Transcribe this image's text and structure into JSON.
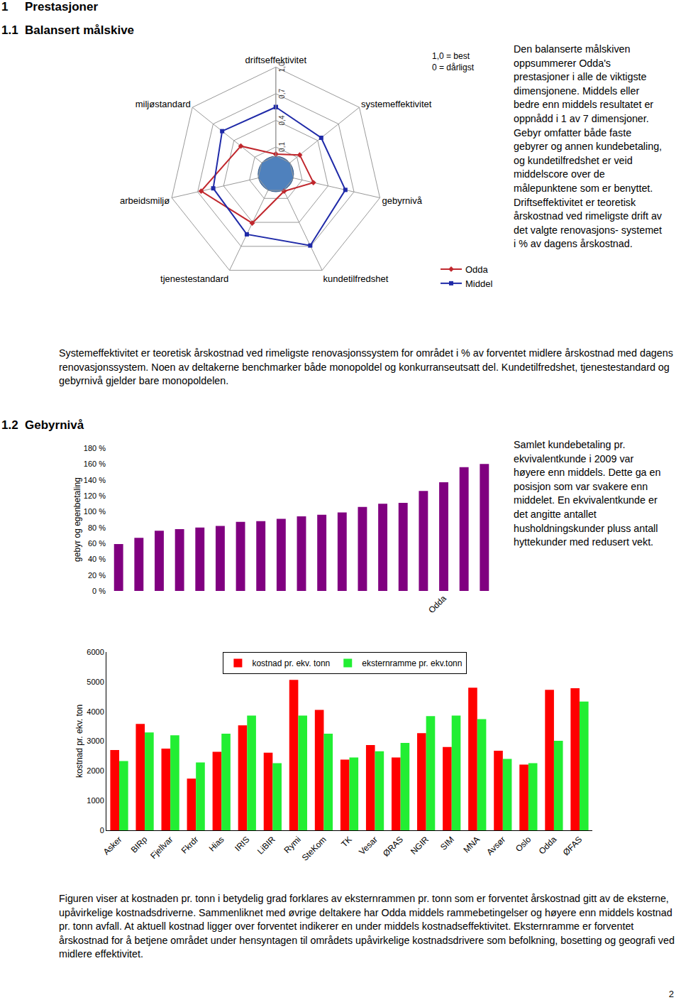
{
  "document": {
    "headings": [
      {
        "number": "1",
        "text": "Prestasjoner"
      },
      {
        "number": "1.1",
        "text": "Balansert målskive"
      },
      {
        "number": "1.2",
        "text": "Gebyrnivå"
      }
    ],
    "texts": {
      "radar_note": "Den balanserte målskiven oppsummerer Odda's prestasjoner i alle de viktigste dimensjonene. Middels eller bedre enn middels resultatet er oppnådd i 1 av 7 dimensjoner. Gebyr omfatter både faste gebyrer og annen kundebetaling, og kundetilfredshet er veid middelscore over de målepunktene som er benyttet. Driftseffektivitet er teoretisk årskostnad ved rimeligste drift av det valgte renovasjons- systemet i % av dagens årskostnad.",
      "system_note": "Systemeffektivitet er teoretisk årskostnad ved rimeligste renovasjonssystem for området i % av forventet midlere årskostnad med dagens renovasjonssystem. Noen av deltakerne benchmarker både monopoldel og konkurranseutsatt del. Kundetilfredshet, tjenestestandard og gebyrnivå gjelder bare monopoldelen.",
      "fee_note": "Samlet kundebetaling pr. ekvivalentkunde i 2009 var høyere enn middels. Dette ga en posisjon som var svakere enn middelet. En ekvivalentkunde er det angitte antallet husholdningskunder pluss antall hyttekunder med redusert vekt.",
      "cost_note": "Figuren viser at kostnaden pr. tonn i betydelig grad forklares av eksternrammen pr. tonn som er forventet årskostnad gitt av de eksterne, upåvirkelige kostnadsdriverne. Sammenliknet med øvrige deltakere har Odda middels rammebetingelser og høyere enn middels kostnad pr. tonn avfall. At aktuell kostnad ligger over forventet indikerer en under middels kostnadseffektivitet. Eksternramme er forventet årskostnad for å betjene området under hensyntagen til områdets upåvirkelige kostnadsdrivere som befolkning, bosetting og geografi ved midlere effektivitet."
    },
    "page_number": "2"
  },
  "chart_data": [
    {
      "type": "radar",
      "categories": [
        "driftseffektivitet",
        "systemeffektivitet",
        "gebyrnivå",
        "kundetilfredshet",
        "tjenestestandard",
        "arbeidsmiljø",
        "miljøstandard"
      ],
      "series": [
        {
          "name": "Odda",
          "color": "#c0272d",
          "marker": "diamond",
          "values": [
            0.02,
            0.14,
            0.23,
            0.01,
            0.41,
            0.66,
            0.3
          ]
        },
        {
          "name": "Middel",
          "color": "#1f2aa8",
          "marker": "square",
          "values": [
            0.55,
            0.45,
            0.6,
            0.69,
            0.55,
            0.52,
            0.57
          ]
        }
      ],
      "ylim": [
        0,
        1
      ],
      "yticks": [
        {
          "value": 0.1,
          "label": "0,1"
        },
        {
          "value": 0.4,
          "label": "0,4"
        },
        {
          "value": 0.7,
          "label": "0,7"
        },
        {
          "value": 1,
          "label": "1,0"
        }
      ],
      "annotations": [
        "1,0 = best",
        "0 = dårligst"
      ],
      "grid": true,
      "legend": "right"
    },
    {
      "type": "bar",
      "y_label": "gebyr og egenbetaling",
      "categories": [
        null,
        null,
        null,
        null,
        null,
        null,
        null,
        null,
        null,
        null,
        null,
        null,
        null,
        null,
        null,
        null,
        "Odda",
        null,
        null
      ],
      "values": [
        59,
        67,
        76,
        78,
        80,
        82,
        87,
        88,
        91,
        94,
        96,
        99,
        106,
        110,
        111,
        126,
        137,
        156,
        160
      ],
      "color": "#800080",
      "ylim": [
        0,
        180
      ],
      "yticks": [
        {
          "value": 0,
          "label": "0 %"
        },
        {
          "value": 20,
          "label": "20 %"
        },
        {
          "value": 40,
          "label": "40 %"
        },
        {
          "value": 60,
          "label": "60 %"
        },
        {
          "value": 80,
          "label": "80 %"
        },
        {
          "value": 100,
          "label": "100 %"
        },
        {
          "value": 120,
          "label": "120 %"
        },
        {
          "value": 140,
          "label": "140 %"
        },
        {
          "value": 160,
          "label": "160 %"
        },
        {
          "value": 180,
          "label": "180 %"
        }
      ],
      "grid": false
    },
    {
      "type": "bar",
      "y_label": "kostnad pr. ekv. ton",
      "categories": [
        "Asker",
        "BIRp",
        "Fjellvar",
        "Fkrdr",
        "Hias",
        "IRIS",
        "LiBIR",
        "Rymi",
        "SteKom",
        "TK",
        "Vesar",
        "ØRAS",
        "NGIR",
        "SIM",
        "MNA",
        "Avsør",
        "Oslo",
        "Odda",
        "ØFAS"
      ],
      "series": [
        {
          "name": "kostnad pr. ekv. tonn",
          "color": "#ff0000",
          "values": [
            2700,
            3580,
            2750,
            1740,
            2640,
            3530,
            2610,
            5060,
            4050,
            2380,
            2870,
            2450,
            3270,
            2800,
            4800,
            2680,
            2210,
            4730,
            4780
          ]
        },
        {
          "name": "eksternramme pr. ekv.tonn",
          "color": "#22ee33",
          "values": [
            2330,
            3290,
            3200,
            2280,
            3250,
            3860,
            2260,
            3860,
            3250,
            2450,
            2660,
            2940,
            3840,
            3860,
            3740,
            2400,
            2260,
            3010,
            4330
          ]
        }
      ],
      "ylim": [
        0,
        6000
      ],
      "yticks": [
        0,
        1000,
        2000,
        3000,
        4000,
        5000,
        6000
      ],
      "grid": false,
      "legend": "top"
    }
  ]
}
